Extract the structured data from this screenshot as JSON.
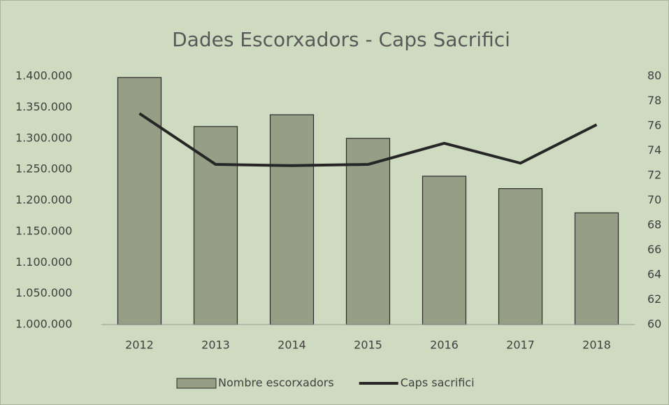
{
  "chart_data": {
    "type": "bar_line",
    "title": "Dades Escorxadors - Caps Sacrifici",
    "categories": [
      "2012",
      "2013",
      "2014",
      "2015",
      "2016",
      "2017",
      "2018"
    ],
    "series": [
      {
        "name": "Nombre escorxadors",
        "type": "bar",
        "color": "#969f86",
        "values": [
          1398000,
          1319000,
          1338000,
          1300000,
          1239000,
          1219000,
          1180000
        ]
      },
      {
        "name": "Caps sacrifici",
        "type": "line",
        "axis": "y2",
        "color": "#262626",
        "values": [
          77.0,
          72.9,
          72.8,
          72.9,
          74.6,
          73.0,
          76.1
        ]
      }
    ],
    "ylim": [
      1000000,
      1400000
    ],
    "yticks": [
      {
        "value": 1000000,
        "label": "1.000.000"
      },
      {
        "value": 1050000,
        "label": "1.050.000"
      },
      {
        "value": 1100000,
        "label": "1.100.000"
      },
      {
        "value": 1150000,
        "label": "1.150.000"
      },
      {
        "value": 1200000,
        "label": "1.200.000"
      },
      {
        "value": 1250000,
        "label": "1.250.000"
      },
      {
        "value": 1300000,
        "label": "1.300.000"
      },
      {
        "value": 1350000,
        "label": "1.350.000"
      },
      {
        "value": 1400000,
        "label": "1.400.000"
      }
    ],
    "y2lim": [
      60,
      80
    ],
    "y2ticks": [
      60,
      62,
      64,
      66,
      68,
      70,
      72,
      74,
      76,
      78,
      80
    ],
    "legend": "bottom"
  }
}
